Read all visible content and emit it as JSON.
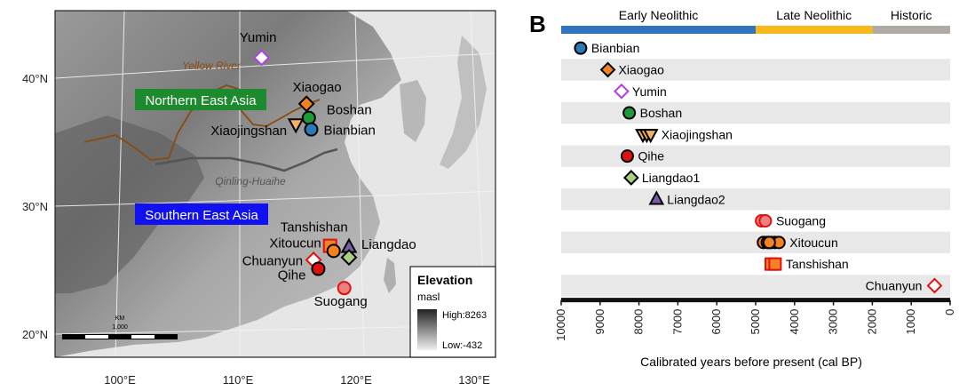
{
  "chart_data": [
    {
      "type": "map",
      "title": "",
      "lat_ticks": [
        "40°N",
        "30°N",
        "20°N"
      ],
      "lon_ticks": [
        "100°E",
        "110°E",
        "120°E",
        "130°E"
      ],
      "region_labels": {
        "north": "Northern East Asia",
        "south": "Southern East Asia",
        "river": "Yellow River",
        "line": "Qinling-Huaihe"
      },
      "colors": {
        "north": "#1e8a2e",
        "south": "#1010f0",
        "river": "#8b4a10"
      },
      "legend": {
        "title": "Elevation",
        "unit": "masl",
        "high": "High:8263",
        "low": "Low:-432"
      },
      "scale": {
        "unit": "KM",
        "value": "1,000"
      },
      "sites": [
        {
          "name": "Yumin",
          "lon": 112.0,
          "lat": 41.6,
          "marker": "diamond",
          "color": "#ffffff",
          "stroke": "#b040e0"
        },
        {
          "name": "Xiaogao",
          "lon": 115.8,
          "lat": 38.0,
          "marker": "diamond",
          "color": "#f58220",
          "stroke": "#000000"
        },
        {
          "name": "Boshan",
          "lon": 116.0,
          "lat": 36.9,
          "marker": "circle",
          "color": "#1f9a3a",
          "stroke": "#000000"
        },
        {
          "name": "Bianbian",
          "lon": 116.2,
          "lat": 36.0,
          "marker": "circle",
          "color": "#2a7ab8",
          "stroke": "#000000"
        },
        {
          "name": "Xiaojingshan",
          "lon": 114.9,
          "lat": 36.4,
          "marker": "triangle-down",
          "color": "#f5b060",
          "stroke": "#000000"
        },
        {
          "name": "Tanshishan",
          "lon": 117.8,
          "lat": 26.9,
          "marker": "square",
          "color": "#f58220",
          "stroke": "#e01010"
        },
        {
          "name": "Xitoucun",
          "lon": 118.1,
          "lat": 26.5,
          "marker": "circle",
          "color": "#f58220",
          "stroke": "#000000"
        },
        {
          "name": "Liangdao",
          "lon": 119.4,
          "lat": 26.8,
          "marker": "triangle-up",
          "color": "#7a5ca8",
          "stroke": "#000000"
        },
        {
          "name": "",
          "lon": 119.4,
          "lat": 26.0,
          "marker": "diamond",
          "color": "#a8d080",
          "stroke": "#000000"
        },
        {
          "name": "Chuanyun",
          "lon": 116.4,
          "lat": 25.8,
          "marker": "diamond",
          "color": "#ffffff",
          "stroke": "#e01010"
        },
        {
          "name": "Qihe",
          "lon": 116.8,
          "lat": 25.1,
          "marker": "circle",
          "color": "#e01010",
          "stroke": "#000000"
        },
        {
          "name": "Suogang",
          "lon": 119.0,
          "lat": 23.6,
          "marker": "circle",
          "color": "#f08080",
          "stroke": "#e01010"
        }
      ]
    },
    {
      "type": "scatter",
      "panel_label": "B",
      "xlabel": "Calibrated years before present (cal BP)",
      "xlim": [
        10000,
        0
      ],
      "x_ticks": [
        10000,
        9000,
        8000,
        7000,
        6000,
        5000,
        4000,
        3000,
        2000,
        1000,
        0
      ],
      "periods": [
        {
          "name": "Early Neolithic",
          "from": 10000,
          "to": 5000,
          "color": "#2e74c0"
        },
        {
          "name": "Late Neolithic",
          "from": 5000,
          "to": 2000,
          "color": "#f9b81a"
        },
        {
          "name": "Historic",
          "from": 2000,
          "to": 0,
          "color": "#b0aaa4"
        }
      ],
      "rows": [
        {
          "name": "Bianbian",
          "marker": "circle",
          "color": "#2a7ab8",
          "stroke": "#000000",
          "values": [
            9500
          ]
        },
        {
          "name": "Xiaogao",
          "marker": "diamond",
          "color": "#f58220",
          "stroke": "#000000",
          "values": [
            8800
          ]
        },
        {
          "name": "Yumin",
          "marker": "diamond",
          "color": "#ffffff",
          "stroke": "#b040e0",
          "values": [
            8450
          ]
        },
        {
          "name": "Boshan",
          "marker": "circle",
          "color": "#1f9a3a",
          "stroke": "#000000",
          "values": [
            8250
          ]
        },
        {
          "name": "Xiaojingshan",
          "marker": "triangle-down",
          "color": "#f5b060",
          "stroke": "#000000",
          "values": [
            7900,
            7800,
            7700
          ]
        },
        {
          "name": "Qihe",
          "marker": "circle",
          "color": "#e01010",
          "stroke": "#000000",
          "values": [
            8300
          ]
        },
        {
          "name": "Liangdao1",
          "marker": "diamond",
          "color": "#a8d080",
          "stroke": "#000000",
          "values": [
            8200
          ]
        },
        {
          "name": "Liangdao2",
          "marker": "triangle-up",
          "color": "#7a5ca8",
          "stroke": "#000000",
          "values": [
            7550
          ]
        },
        {
          "name": "Suogang",
          "marker": "circle",
          "color": "#f08080",
          "stroke": "#e01010",
          "values": [
            4850,
            4750
          ]
        },
        {
          "name": "Xitoucun",
          "marker": "circle",
          "color": "#f58220",
          "stroke": "#000000",
          "values": [
            4800,
            4700,
            4600,
            4500,
            4400,
            4650
          ]
        },
        {
          "name": "Tanshishan",
          "marker": "square",
          "color": "#f58220",
          "stroke": "#e01010",
          "values": [
            4600,
            4500
          ]
        },
        {
          "name": "Chuanyun",
          "marker": "diamond",
          "color": "#ffffff",
          "stroke": "#e01010",
          "values": [
            400
          ]
        }
      ]
    }
  ]
}
